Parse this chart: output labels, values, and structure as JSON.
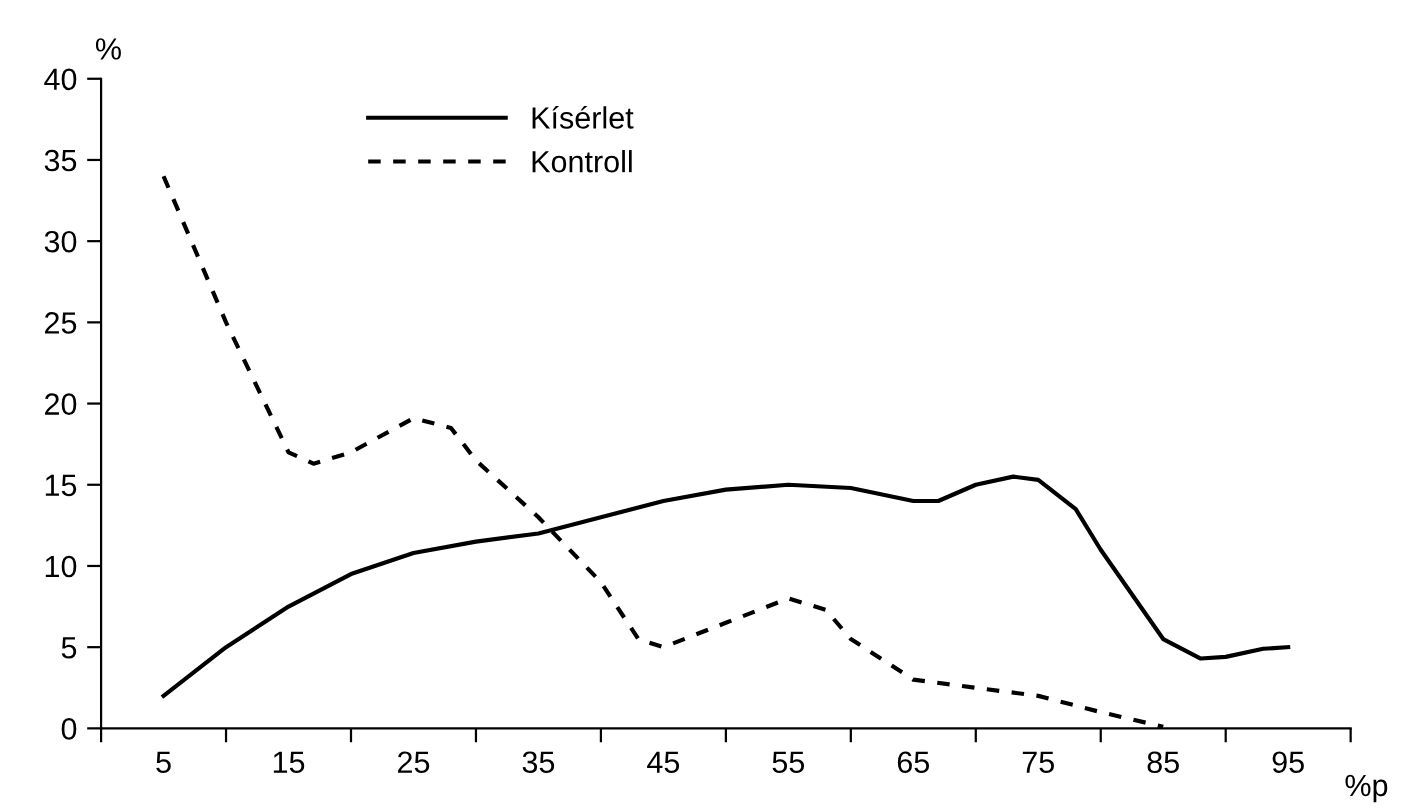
{
  "chart_data": {
    "type": "line",
    "ylabel": "%",
    "xlabel": "%p",
    "xlim": [
      0,
      100
    ],
    "ylim": [
      0,
      40
    ],
    "xticks": [
      {
        "value": 0,
        "label": null
      },
      {
        "value": 5,
        "label": "5"
      },
      {
        "value": 10,
        "label": null
      },
      {
        "value": 15,
        "label": "15"
      },
      {
        "value": 20,
        "label": null
      },
      {
        "value": 25,
        "label": "25"
      },
      {
        "value": 30,
        "label": null
      },
      {
        "value": 35,
        "label": "35"
      },
      {
        "value": 40,
        "label": null
      },
      {
        "value": 45,
        "label": "45"
      },
      {
        "value": 50,
        "label": null
      },
      {
        "value": 55,
        "label": "55"
      },
      {
        "value": 60,
        "label": null
      },
      {
        "value": 65,
        "label": "65"
      },
      {
        "value": 70,
        "label": null
      },
      {
        "value": 75,
        "label": "75"
      },
      {
        "value": 80,
        "label": null
      },
      {
        "value": 85,
        "label": "85"
      },
      {
        "value": 90,
        "label": null
      },
      {
        "value": 95,
        "label": "95"
      },
      {
        "value": 100,
        "label": null
      }
    ],
    "yticks": [
      0,
      5,
      10,
      15,
      20,
      25,
      30,
      35,
      40
    ],
    "grid": false,
    "legend": "top",
    "marker": "none",
    "series": [
      {
        "name": "Kísérlet",
        "color": "#000000",
        "line_style": "solid",
        "x": [
          5,
          10,
          15,
          20,
          25,
          30,
          35,
          40,
          45,
          50,
          55,
          60,
          65,
          67,
          70,
          73,
          75,
          78,
          80,
          85,
          88,
          90,
          93,
          95
        ],
        "values": [
          2,
          5,
          7.5,
          9.5,
          10.8,
          11.5,
          12,
          13,
          14,
          14.7,
          15,
          14.8,
          14,
          14,
          15,
          15.5,
          15.3,
          13.5,
          11,
          5.5,
          4.3,
          4.4,
          4.9,
          5
        ]
      },
      {
        "name": "Kontroll",
        "color": "#000000",
        "line_style": "dashed",
        "x": [
          5,
          10,
          15,
          17,
          20,
          25,
          28,
          30,
          35,
          40,
          43,
          45,
          50,
          55,
          58,
          60,
          65,
          70,
          75,
          80,
          85
        ],
        "values": [
          34,
          25,
          17,
          16.3,
          17,
          19.1,
          18.5,
          16.5,
          13,
          9,
          5.5,
          5,
          6.5,
          8,
          7.3,
          5.5,
          3,
          2.5,
          2,
          1,
          0.1
        ]
      }
    ]
  }
}
